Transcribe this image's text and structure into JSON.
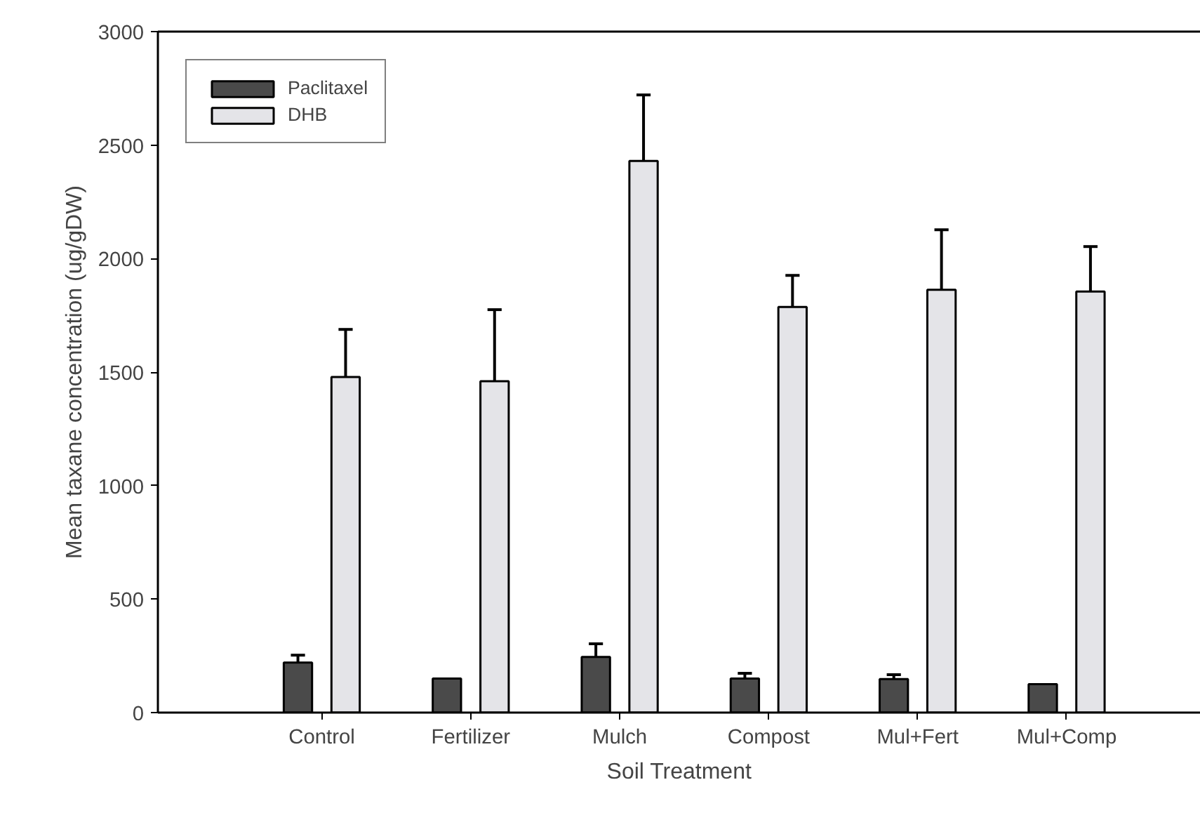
{
  "chart_data": {
    "type": "bar",
    "xlabel": "Soil Treatment",
    "ylabel": "Mean taxane concentration (ug/gDW)",
    "categories": [
      "Control",
      "Fertilizer",
      "Mulch",
      "Compost",
      "Mul+Fert",
      "Mul+Comp"
    ],
    "series": [
      {
        "name": "Paclitaxel",
        "color": "#4a4a4a",
        "values": [
          220,
          150,
          245,
          150,
          148,
          125
        ],
        "errors": [
          [
            220,
            253
          ],
          null,
          [
            245,
            303
          ],
          [
            150,
            173
          ],
          [
            148,
            167
          ],
          null
        ]
      },
      {
        "name": "DHB",
        "color": "#e4e4e8",
        "values": [
          1478,
          1460,
          2430,
          1787,
          1863,
          1855
        ],
        "errors": [
          [
            1478,
            1688
          ],
          [
            1460,
            1775
          ],
          [
            2430,
            2721
          ],
          [
            1787,
            1926
          ],
          [
            1863,
            2127
          ],
          [
            1855,
            2053
          ]
        ]
      }
    ],
    "ylim": [
      0,
      3000
    ],
    "yticks": [
      0,
      500,
      1000,
      1500,
      2000,
      2500,
      3000
    ],
    "grid": false,
    "legend": "top left"
  }
}
